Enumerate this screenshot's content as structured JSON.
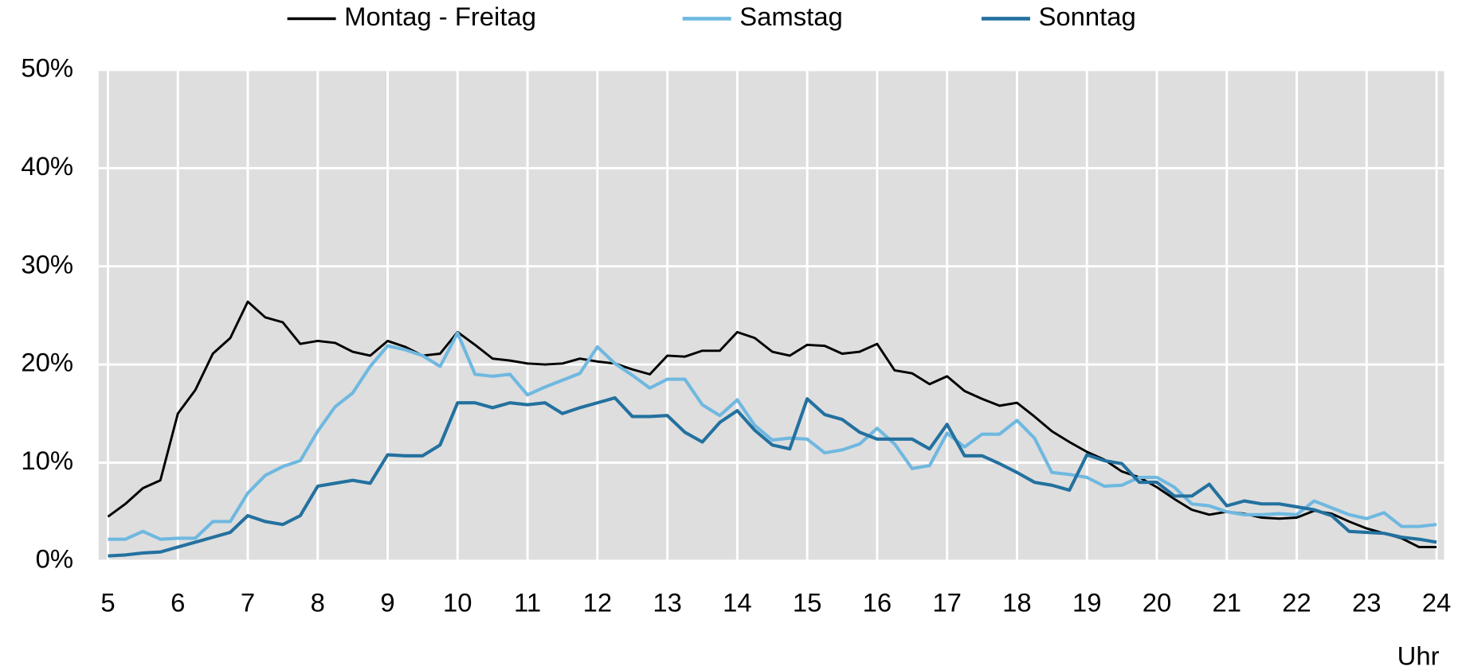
{
  "chart_data": {
    "type": "line",
    "x": [
      5,
      5.25,
      5.5,
      5.75,
      6,
      6.25,
      6.5,
      6.75,
      7,
      7.25,
      7.5,
      7.75,
      8,
      8.25,
      8.5,
      8.75,
      9,
      9.25,
      9.5,
      9.75,
      10,
      10.25,
      10.5,
      10.75,
      11,
      11.25,
      11.5,
      11.75,
      12,
      12.25,
      12.5,
      12.75,
      13,
      13.25,
      13.5,
      13.75,
      14,
      14.25,
      14.5,
      14.75,
      15,
      15.25,
      15.5,
      15.75,
      16,
      16.25,
      16.5,
      16.75,
      17,
      17.25,
      17.5,
      17.75,
      18,
      18.25,
      18.5,
      18.75,
      19,
      19.25,
      19.5,
      19.75,
      20,
      20.25,
      20.5,
      20.75,
      21,
      21.25,
      21.5,
      21.75,
      22,
      22.25,
      22.5,
      22.75,
      23,
      23.25,
      23.5,
      23.75,
      24
    ],
    "series": [
      {
        "name": "Montag - Freitag",
        "color": "#000000",
        "values": [
          4.5,
          5.8,
          7.4,
          8.2,
          15.0,
          17.4,
          21.1,
          22.7,
          26.4,
          24.8,
          24.3,
          22.1,
          22.4,
          22.2,
          21.3,
          20.9,
          22.4,
          21.8,
          20.9,
          21.1,
          23.3,
          22.0,
          20.6,
          20.4,
          20.1,
          20.0,
          20.1,
          20.6,
          20.3,
          20.1,
          19.5,
          19.0,
          20.9,
          20.8,
          21.4,
          21.4,
          23.3,
          22.7,
          21.3,
          20.9,
          22.0,
          21.9,
          21.1,
          21.3,
          22.1,
          19.4,
          19.1,
          18.0,
          18.8,
          17.3,
          16.5,
          15.8,
          16.1,
          14.7,
          13.2,
          12.1,
          11.1,
          10.3,
          9.1,
          8.5,
          7.5,
          6.3,
          5.2,
          4.7,
          5.0,
          4.8,
          4.4,
          4.3,
          4.4,
          5.1,
          4.8,
          4.0,
          3.3,
          2.8,
          2.3,
          1.4,
          1.4
        ]
      },
      {
        "name": "Samstag",
        "color": "#6fb8e0",
        "values": [
          2.2,
          2.2,
          3.0,
          2.2,
          2.3,
          2.3,
          4.0,
          4.0,
          6.9,
          8.7,
          9.6,
          10.2,
          13.2,
          15.7,
          17.1,
          19.8,
          21.9,
          21.5,
          20.9,
          19.8,
          23.2,
          19.0,
          18.8,
          19.0,
          16.9,
          17.7,
          18.4,
          19.1,
          21.8,
          20.1,
          18.9,
          17.6,
          18.5,
          18.5,
          15.9,
          14.8,
          16.4,
          13.8,
          12.3,
          12.5,
          12.4,
          11.0,
          11.3,
          11.9,
          13.5,
          11.9,
          9.4,
          9.7,
          13.0,
          11.6,
          12.9,
          12.9,
          14.3,
          12.5,
          9.0,
          8.8,
          8.5,
          7.6,
          7.7,
          8.5,
          8.5,
          7.5,
          5.8,
          5.6,
          5.0,
          4.7,
          4.7,
          4.8,
          4.7,
          6.1,
          5.4,
          4.7,
          4.3,
          4.9,
          3.5,
          3.5,
          3.7
        ]
      },
      {
        "name": "Sonntag",
        "color": "#23719f",
        "values": [
          0.5,
          0.6,
          0.8,
          0.9,
          1.4,
          1.9,
          2.4,
          2.9,
          4.6,
          4.0,
          3.7,
          4.6,
          7.6,
          7.9,
          8.2,
          7.9,
          10.8,
          10.7,
          10.7,
          11.8,
          16.1,
          16.1,
          15.6,
          16.1,
          15.9,
          16.1,
          15.0,
          15.6,
          16.1,
          16.6,
          14.7,
          14.7,
          14.8,
          13.1,
          12.1,
          14.1,
          15.3,
          13.3,
          11.8,
          11.4,
          16.5,
          14.9,
          14.4,
          13.1,
          12.4,
          12.4,
          12.4,
          11.4,
          13.9,
          10.7,
          10.7,
          9.9,
          9.0,
          8.0,
          7.7,
          7.2,
          10.8,
          10.2,
          9.9,
          8.0,
          8.0,
          6.6,
          6.6,
          7.8,
          5.6,
          6.1,
          5.8,
          5.8,
          5.5,
          5.2,
          4.6,
          3.0,
          2.9,
          2.8,
          2.4,
          2.2,
          1.9
        ]
      }
    ],
    "xlim": [
      5,
      24
    ],
    "xticks": [
      5,
      6,
      7,
      8,
      9,
      10,
      11,
      12,
      13,
      14,
      15,
      16,
      17,
      18,
      19,
      20,
      21,
      22,
      23,
      24
    ],
    "ylim": [
      0,
      50
    ],
    "yticks": [
      {
        "value": 0,
        "label": "0%"
      },
      {
        "value": 10,
        "label": "10%"
      },
      {
        "value": 20,
        "label": "20%"
      },
      {
        "value": 30,
        "label": "30%"
      },
      {
        "value": 40,
        "label": "40%"
      },
      {
        "value": 50,
        "label": "50%"
      }
    ],
    "xlabel": "Uhr",
    "grid": true,
    "legend": "top"
  }
}
